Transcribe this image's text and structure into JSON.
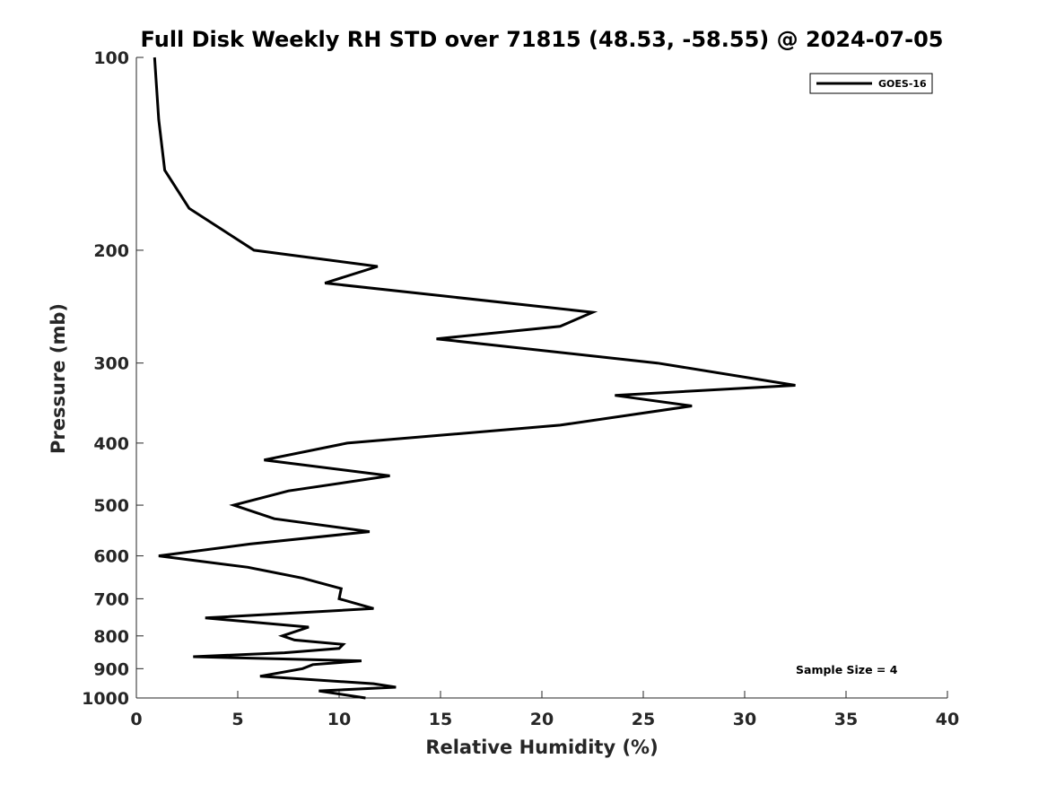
{
  "chart_data": {
    "type": "line",
    "title": "Full Disk Weekly RH STD over 71815 (48.53, -58.55) @ 2024-07-05",
    "xlabel": "Relative Humidity (%)",
    "ylabel": "Pressure (mb)",
    "xlim": [
      0,
      40
    ],
    "ylim": [
      100,
      1000
    ],
    "yscale": "log",
    "y_reversed": true,
    "grid": false,
    "xticks": [
      0,
      5,
      10,
      15,
      20,
      25,
      30,
      35,
      40
    ],
    "yticks": [
      100,
      200,
      300,
      400,
      500,
      600,
      700,
      800,
      900,
      1000
    ],
    "legend_position": "top-right",
    "annotation": "Sample Size = 4",
    "series": [
      {
        "name": "GOES-16",
        "color": "#000000",
        "points": [
          [
            0.9,
            100
          ],
          [
            1.1,
            125
          ],
          [
            1.4,
            150
          ],
          [
            2.6,
            172
          ],
          [
            5.8,
            200
          ],
          [
            11.9,
            212
          ],
          [
            9.3,
            225
          ],
          [
            22.5,
            250
          ],
          [
            20.9,
            263
          ],
          [
            14.8,
            275
          ],
          [
            25.7,
            300
          ],
          [
            32.5,
            325
          ],
          [
            23.6,
            337
          ],
          [
            27.4,
            350
          ],
          [
            20.9,
            375
          ],
          [
            10.4,
            400
          ],
          [
            6.3,
            425
          ],
          [
            12.5,
            450
          ],
          [
            7.5,
            475
          ],
          [
            4.8,
            500
          ],
          [
            6.8,
            525
          ],
          [
            11.5,
            550
          ],
          [
            5.6,
            575
          ],
          [
            1.1,
            600
          ],
          [
            5.5,
            625
          ],
          [
            8.2,
            650
          ],
          [
            10.1,
            675
          ],
          [
            10.0,
            700
          ],
          [
            11.7,
            725
          ],
          [
            3.4,
            750
          ],
          [
            8.5,
            775
          ],
          [
            7.2,
            800
          ],
          [
            7.8,
            812
          ],
          [
            10.2,
            825
          ],
          [
            10.0,
            837
          ],
          [
            7.3,
            850
          ],
          [
            2.8,
            862
          ],
          [
            11.1,
            875
          ],
          [
            8.7,
            887
          ],
          [
            8.2,
            900
          ],
          [
            6.1,
            925
          ],
          [
            11.7,
            950
          ],
          [
            12.8,
            962
          ],
          [
            9.0,
            975
          ],
          [
            11.3,
            1000
          ]
        ]
      }
    ]
  }
}
